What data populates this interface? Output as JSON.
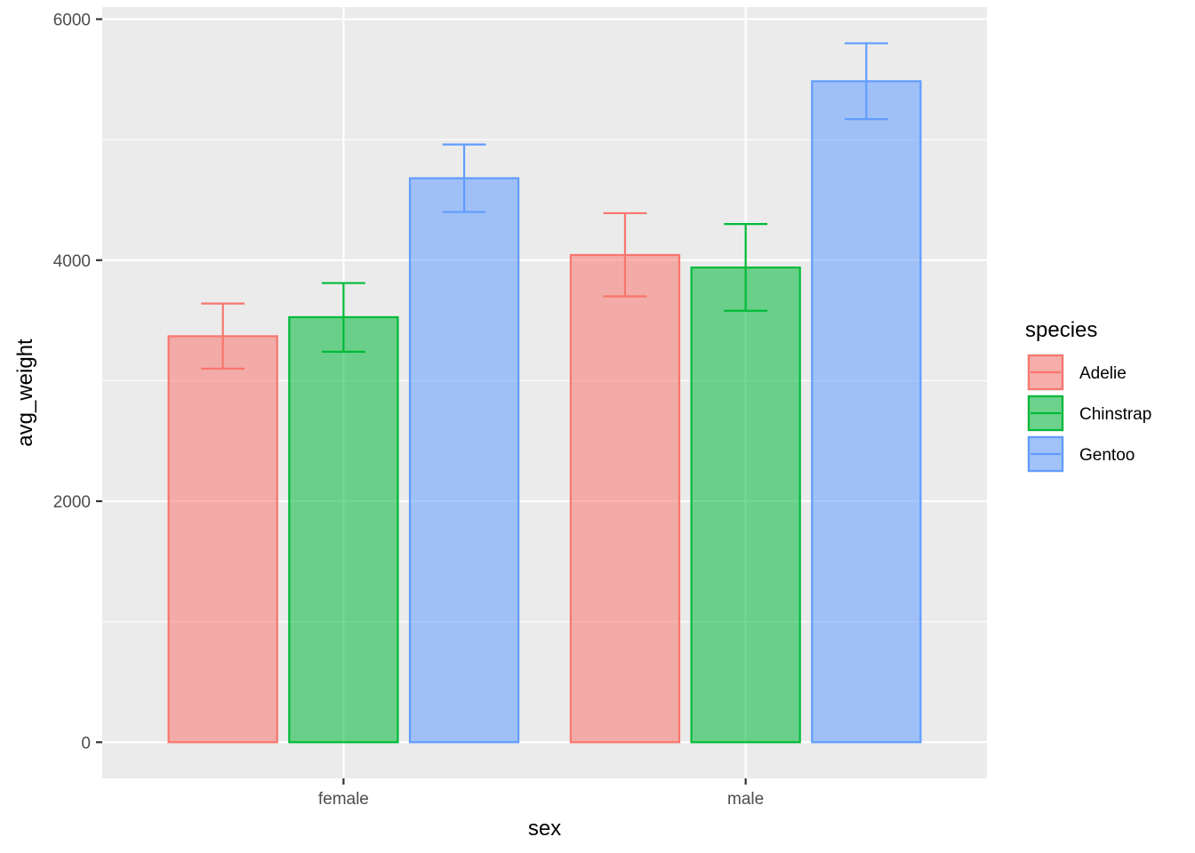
{
  "chart_data": {
    "type": "bar",
    "xlabel": "sex",
    "ylabel": "avg_weight",
    "categories": [
      "female",
      "male"
    ],
    "ylim": [
      -300,
      6100
    ],
    "yticks": [
      0,
      2000,
      4000,
      6000
    ],
    "yticks_labels": [
      "0",
      "2000",
      "4000",
      "6000"
    ],
    "legend_title": "species",
    "legend_position": "right",
    "grid": true,
    "series": [
      {
        "name": "Adelie",
        "color": "#F8766D",
        "values": [
          3369,
          4043
        ],
        "error_low": [
          3100,
          3700
        ],
        "error_high": [
          3640,
          4390
        ]
      },
      {
        "name": "Chinstrap",
        "color": "#00BA38",
        "values": [
          3527,
          3939
        ],
        "error_low": [
          3240,
          3580
        ],
        "error_high": [
          3810,
          4300
        ]
      },
      {
        "name": "Gentoo",
        "color": "#619CFF",
        "values": [
          4680,
          5485
        ],
        "error_low": [
          4400,
          5170
        ],
        "error_high": [
          4960,
          5800
        ]
      }
    ]
  }
}
